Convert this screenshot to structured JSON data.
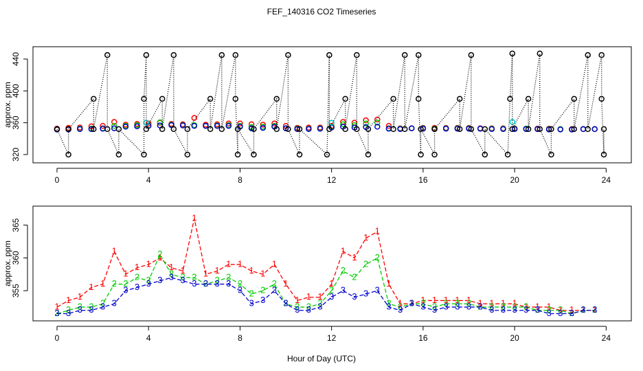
{
  "chart_data": [
    {
      "type": "scatter",
      "title": "FEF_140316  CO2 Timeseries",
      "ylabel": "approx. ppm",
      "xlim": [
        -1.05,
        25.1
      ],
      "xticks": [
        0,
        4,
        8,
        12,
        16,
        20,
        24
      ],
      "ylim": [
        309.6,
        455.5
      ],
      "yticks": [
        320,
        360,
        400,
        440
      ],
      "x": [
        0,
        0.5,
        1,
        1.5,
        2,
        2.5,
        3,
        3.5,
        4,
        4.5,
        5,
        5.5,
        6,
        6.5,
        7,
        7.5,
        8,
        8.5,
        9,
        9.5,
        10,
        10.5,
        11,
        11.5,
        12,
        12.5,
        13,
        13.5,
        14,
        14.5,
        15,
        15.5,
        16,
        16.5,
        17,
        17.5,
        18,
        18.5,
        19,
        19.5,
        20,
        20.5,
        21,
        21.5,
        22,
        22.5,
        23,
        23.5
      ],
      "series": [
        {
          "color": "#ff0000",
          "values": [
            352.5,
            353.5,
            354,
            355.5,
            356,
            361,
            357.5,
            358.5,
            359,
            360,
            358.5,
            358,
            366,
            357.5,
            358,
            359,
            359,
            358,
            357.5,
            359,
            356,
            353.5,
            354,
            354,
            356,
            361,
            360,
            363,
            364,
            356,
            353,
            353,
            353.5,
            353.5,
            353.5,
            353.5,
            353.5,
            353,
            353,
            353,
            353,
            352.5,
            352.5,
            352.5,
            352,
            352,
            352,
            352
          ]
        },
        {
          "color": "#00cc00",
          "values": [
            351.5,
            352,
            352.5,
            352.5,
            353,
            356,
            356,
            357,
            356.5,
            360.5,
            357.5,
            357,
            357,
            356,
            356.5,
            357,
            356,
            354.5,
            355,
            356,
            353,
            352.5,
            352.5,
            353,
            355,
            358,
            357,
            359,
            360,
            353,
            352.5,
            353,
            353,
            352.5,
            353,
            353,
            353,
            352.5,
            352.5,
            352.5,
            352.5,
            352.5,
            352,
            352,
            352,
            351.5,
            352,
            352
          ]
        },
        {
          "color": "#0000cc",
          "values": [
            351.5,
            351.5,
            352,
            352,
            352.5,
            353,
            355,
            355.5,
            356,
            356.5,
            357,
            356.5,
            356,
            356,
            356,
            356,
            355,
            353,
            353.5,
            355,
            353,
            352,
            352,
            352.5,
            354,
            355,
            354,
            354.5,
            355,
            352.5,
            352,
            353,
            352.5,
            352,
            352.5,
            352.5,
            352.5,
            352.5,
            352,
            352,
            352,
            352,
            352,
            351.5,
            351.5,
            351.5,
            352,
            352
          ]
        },
        {
          "color": "#00cccc",
          "x": [
            3.9,
            12,
            19.9
          ],
          "values": [
            360,
            360,
            361
          ]
        },
        {
          "color": "#000000",
          "line_style": "dotted",
          "x": [
            0,
            0.5,
            0.5,
            1.6,
            1.6,
            2.2,
            2.2,
            2.7,
            2.7,
            3.8,
            3.8,
            3.9,
            3.9,
            4.6,
            4.6,
            5.1,
            5.1,
            5.7,
            5.7,
            6.7,
            6.7,
            7.2,
            7.2,
            7.8,
            7.8,
            7.9,
            7.9,
            8.6,
            8.6,
            9.6,
            9.6,
            10.1,
            10.1,
            10.6,
            10.6,
            11.8,
            11.9,
            11.9,
            12.6,
            12.6,
            13.1,
            13.1,
            13.6,
            13.6,
            14.7,
            14.7,
            15.2,
            15.2,
            15.8,
            15.8,
            15.9,
            15.9,
            16.5,
            16.5,
            17.6,
            17.6,
            18.1,
            18.1,
            18.7,
            18.7,
            19.7,
            19.8,
            19.9,
            19.9,
            20.6,
            20.6,
            21.1,
            21.1,
            21.6,
            21.6,
            22.6,
            22.6,
            23.2,
            23.2,
            23.8,
            23.8,
            23.9,
            23.9
          ],
          "values": [
            352,
            320,
            352,
            390,
            352,
            445,
            352,
            320,
            352,
            320,
            390,
            445,
            352,
            390,
            352,
            445,
            352,
            320,
            352,
            390,
            352,
            445,
            352,
            445,
            390,
            320,
            352,
            320,
            352,
            390,
            352,
            445,
            352,
            320,
            352,
            320,
            445,
            352,
            390,
            352,
            445,
            352,
            320,
            352,
            390,
            352,
            445,
            352,
            445,
            390,
            320,
            352,
            320,
            352,
            390,
            352,
            445,
            352,
            320,
            352,
            320,
            390,
            447,
            352,
            390,
            352,
            447,
            352,
            320,
            352,
            390,
            352,
            445,
            352,
            445,
            390,
            320,
            352
          ]
        }
      ]
    },
    {
      "type": "line",
      "ylabel": "approx. ppm",
      "xlabel": "Hour of Day (UTC)",
      "xlim": [
        -1.05,
        25.1
      ],
      "xticks": [
        0,
        4,
        8,
        12,
        16,
        20,
        24
      ],
      "ylim": [
        350.4,
        367.9
      ],
      "yticks": [
        355,
        360,
        365
      ],
      "x": [
        0,
        0.5,
        1,
        1.5,
        2,
        2.5,
        3,
        3.5,
        4,
        4.5,
        5,
        5.5,
        6,
        6.5,
        7,
        7.5,
        8,
        8.5,
        9,
        9.5,
        10,
        10.5,
        11,
        11.5,
        12,
        12.5,
        13,
        13.5,
        14,
        14.5,
        15,
        15.5,
        16,
        16.5,
        17,
        17.5,
        18,
        18.5,
        19,
        19.5,
        20,
        20.5,
        21,
        21.5,
        22,
        22.5,
        23,
        23.5
      ],
      "series": [
        {
          "color": "#ff0000",
          "marker": "1",
          "line_style": "dashed",
          "values": [
            352.5,
            353.5,
            354,
            355.5,
            356,
            361,
            357.5,
            358.5,
            359,
            360,
            358.5,
            358,
            366,
            357.5,
            358,
            359,
            359,
            358,
            357.5,
            359,
            356,
            353.5,
            354,
            354,
            356,
            361,
            360,
            363,
            364,
            356,
            353,
            353,
            353.5,
            353.5,
            353.5,
            353.5,
            353.5,
            353,
            353,
            353,
            353,
            352.5,
            352.5,
            352.5,
            352,
            352,
            352,
            352
          ]
        },
        {
          "color": "#00cc00",
          "marker": "2",
          "line_style": "dashed",
          "values": [
            351.5,
            352,
            352.5,
            352.5,
            353,
            356,
            356,
            357,
            356.5,
            360.5,
            357.5,
            357,
            357,
            356,
            356.5,
            357,
            356,
            354.5,
            355,
            356,
            353,
            352.5,
            352.5,
            353,
            355,
            358,
            357,
            359,
            360,
            353,
            352.5,
            353,
            353,
            352.5,
            353,
            353,
            353,
            352.5,
            352.5,
            352.5,
            352.5,
            352.5,
            352,
            352,
            352,
            351.5,
            352,
            352
          ]
        },
        {
          "color": "#0000cc",
          "marker": "3",
          "line_style": "dashed",
          "values": [
            351.5,
            351.5,
            352,
            352,
            352.5,
            353,
            355,
            355.5,
            356,
            356.5,
            357,
            356.5,
            356,
            356,
            356,
            356,
            355,
            353,
            353.5,
            355,
            353,
            352,
            352,
            352.5,
            354,
            355,
            354,
            354.5,
            355,
            352.5,
            352,
            353,
            352.5,
            352,
            352.5,
            352.5,
            352.5,
            352.5,
            352,
            352,
            352,
            352,
            352,
            351.5,
            351.5,
            351.5,
            352,
            352
          ]
        }
      ]
    }
  ]
}
